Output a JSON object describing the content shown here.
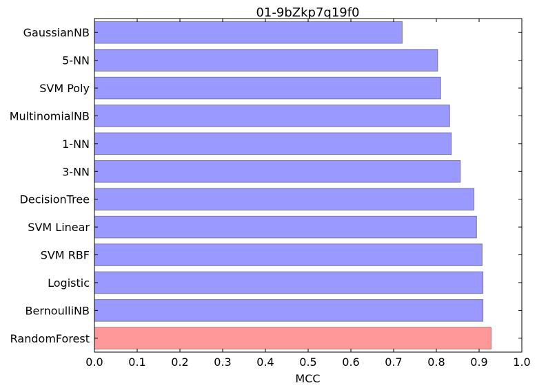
{
  "chart_data": {
    "type": "bar",
    "orientation": "horizontal",
    "title": "01-9bZkp7q19f0",
    "xlabel": "MCC",
    "ylabel": "",
    "xlim": [
      0.0,
      1.0
    ],
    "xticks": [
      "0.0",
      "0.1",
      "0.2",
      "0.3",
      "0.4",
      "0.5",
      "0.6",
      "0.7",
      "0.8",
      "0.9",
      "1.0"
    ],
    "grid": false,
    "legend": "none",
    "categories": [
      "GaussianNB",
      "5-NN",
      "SVM Poly",
      "MultinomialNB",
      "1-NN",
      "3-NN",
      "DecisionTree",
      "SVM Linear",
      "SVM RBF",
      "Logistic",
      "BernoulliNB",
      "RandomForest"
    ],
    "values": [
      0.72,
      0.803,
      0.81,
      0.831,
      0.835,
      0.856,
      0.888,
      0.894,
      0.907,
      0.909,
      0.909,
      0.928
    ],
    "colors": {
      "default_fill": "#9999ff",
      "default_edge": "#77779e",
      "highlight_fill": "#ff9999",
      "highlight_edge": "#c07070"
    },
    "highlight_index": 11
  }
}
